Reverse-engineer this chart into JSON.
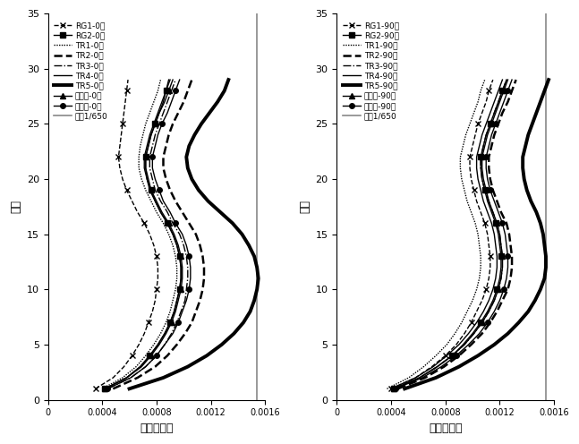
{
  "floors": [
    1,
    2,
    3,
    4,
    5,
    6,
    7,
    8,
    9,
    10,
    11,
    12,
    13,
    14,
    15,
    16,
    17,
    18,
    19,
    20,
    21,
    22,
    23,
    24,
    25,
    26,
    27,
    28,
    29
  ],
  "xlim": [
    0,
    0.0016
  ],
  "ylim": [
    0,
    35
  ],
  "xticks": [
    0,
    0.0004,
    0.0008,
    0.0012,
    0.0016
  ],
  "xtick_labels": [
    "0",
    "0.0004",
    "0.0008",
    "0.0012",
    "0.0016"
  ],
  "yticks": [
    0,
    5,
    10,
    15,
    20,
    25,
    30,
    35
  ],
  "xlabel": "层间位移角",
  "ylabel": "楼层",
  "limit_value": 0.001538,
  "left": {
    "RG1": [
      0.00035,
      0.00048,
      0.00056,
      0.00062,
      0.00067,
      0.00071,
      0.00074,
      0.00077,
      0.00079,
      0.0008,
      0.00081,
      0.00081,
      0.0008,
      0.00078,
      0.00075,
      0.00071,
      0.00066,
      0.00062,
      0.00058,
      0.00055,
      0.00053,
      0.00052,
      0.00053,
      0.00054,
      0.00055,
      0.00056,
      0.00057,
      0.00058,
      0.00059
    ],
    "RG2": [
      0.00042,
      0.00058,
      0.00068,
      0.00075,
      0.00081,
      0.00086,
      0.0009,
      0.00093,
      0.00095,
      0.00097,
      0.00098,
      0.00098,
      0.00097,
      0.00095,
      0.00092,
      0.00088,
      0.00083,
      0.00079,
      0.00076,
      0.00073,
      0.00072,
      0.00072,
      0.00074,
      0.00076,
      0.00079,
      0.00082,
      0.00085,
      0.00087,
      0.00089
    ],
    "TR1": [
      0.0004,
      0.00055,
      0.00065,
      0.00072,
      0.00078,
      0.00083,
      0.00087,
      0.0009,
      0.00092,
      0.00094,
      0.00095,
      0.00095,
      0.00094,
      0.00092,
      0.00089,
      0.00085,
      0.0008,
      0.00076,
      0.00072,
      0.00069,
      0.00067,
      0.00067,
      0.00068,
      0.0007,
      0.00072,
      0.00075,
      0.00078,
      0.00081,
      0.00083
    ],
    "TR2": [
      0.00048,
      0.00066,
      0.00079,
      0.00088,
      0.00095,
      0.00101,
      0.00106,
      0.00109,
      0.00112,
      0.00114,
      0.00115,
      0.00115,
      0.00114,
      0.00112,
      0.00109,
      0.00104,
      0.00099,
      0.00094,
      0.0009,
      0.00087,
      0.00085,
      0.00085,
      0.00087,
      0.00089,
      0.00092,
      0.00096,
      0.001,
      0.00103,
      0.00106
    ],
    "TR3": [
      0.00044,
      0.00061,
      0.00072,
      0.0008,
      0.00086,
      0.00091,
      0.00095,
      0.00098,
      0.00101,
      0.00102,
      0.00103,
      0.00103,
      0.00102,
      0.001,
      0.00097,
      0.00092,
      0.00088,
      0.00083,
      0.00079,
      0.00077,
      0.00075,
      0.00075,
      0.00077,
      0.00079,
      0.00082,
      0.00085,
      0.00088,
      0.00091,
      0.00094
    ],
    "TR4": [
      0.00042,
      0.00058,
      0.00068,
      0.00075,
      0.00081,
      0.00086,
      0.0009,
      0.00093,
      0.00095,
      0.00097,
      0.00098,
      0.00098,
      0.00097,
      0.00095,
      0.00092,
      0.00088,
      0.00083,
      0.00079,
      0.00075,
      0.00073,
      0.00071,
      0.00071,
      0.00073,
      0.00075,
      0.00078,
      0.00081,
      0.00084,
      0.00087,
      0.0009
    ],
    "TR5": [
      0.0006,
      0.00085,
      0.00103,
      0.00117,
      0.00128,
      0.00137,
      0.00144,
      0.00149,
      0.00152,
      0.00154,
      0.00155,
      0.00154,
      0.00152,
      0.00148,
      0.00143,
      0.00136,
      0.00127,
      0.00118,
      0.00111,
      0.00106,
      0.00103,
      0.00102,
      0.00104,
      0.00108,
      0.00113,
      0.00119,
      0.00125,
      0.0013,
      0.00133
    ],
    "fanying": [
      0.00042,
      0.00058,
      0.00069,
      0.00076,
      0.00082,
      0.00087,
      0.00091,
      0.00094,
      0.00096,
      0.00098,
      0.00099,
      0.00099,
      0.00098,
      0.00096,
      0.00093,
      0.00089,
      0.00084,
      0.0008,
      0.00076,
      0.00074,
      0.00072,
      0.00072,
      0.00074,
      0.00076,
      0.00079,
      0.00082,
      0.00086,
      0.00089,
      0.00092
    ],
    "pingjun": [
      0.00044,
      0.00061,
      0.00072,
      0.0008,
      0.00086,
      0.00092,
      0.00096,
      0.00099,
      0.00102,
      0.00104,
      0.00105,
      0.00105,
      0.00104,
      0.00102,
      0.00099,
      0.00094,
      0.0009,
      0.00085,
      0.00082,
      0.00079,
      0.00077,
      0.00077,
      0.00079,
      0.00081,
      0.00084,
      0.00088,
      0.00091,
      0.00094,
      0.00097
    ]
  },
  "right": {
    "RG1": [
      0.0004,
      0.00058,
      0.0007,
      0.0008,
      0.00088,
      0.00094,
      0.00099,
      0.00103,
      0.00107,
      0.0011,
      0.00112,
      0.00113,
      0.00113,
      0.00112,
      0.00111,
      0.00109,
      0.00106,
      0.00103,
      0.00101,
      0.00099,
      0.00098,
      0.00098,
      0.001,
      0.00102,
      0.00104,
      0.00107,
      0.0011,
      0.00112,
      0.00115
    ],
    "RG2": [
      0.00042,
      0.00061,
      0.00074,
      0.00085,
      0.00093,
      0.001,
      0.00106,
      0.00111,
      0.00115,
      0.00118,
      0.0012,
      0.00121,
      0.00121,
      0.0012,
      0.00119,
      0.00117,
      0.00114,
      0.00111,
      0.00109,
      0.00107,
      0.00106,
      0.00106,
      0.00108,
      0.0011,
      0.00113,
      0.00116,
      0.00119,
      0.00122,
      0.00125
    ],
    "TR1": [
      0.00037,
      0.00053,
      0.00064,
      0.00073,
      0.00081,
      0.00087,
      0.00092,
      0.00096,
      0.001,
      0.00103,
      0.00105,
      0.00106,
      0.00106,
      0.00105,
      0.00104,
      0.00102,
      0.00099,
      0.00096,
      0.00094,
      0.00092,
      0.00091,
      0.00091,
      0.00093,
      0.00095,
      0.00098,
      0.00101,
      0.00104,
      0.00106,
      0.00109
    ],
    "TR2": [
      0.00045,
      0.00065,
      0.00079,
      0.0009,
      0.00099,
      0.00107,
      0.00113,
      0.00118,
      0.00122,
      0.00126,
      0.00128,
      0.00129,
      0.00129,
      0.00128,
      0.00127,
      0.00125,
      0.00121,
      0.00118,
      0.00115,
      0.00113,
      0.00112,
      0.00112,
      0.00114,
      0.00116,
      0.00119,
      0.00122,
      0.00126,
      0.00129,
      0.00132
    ],
    "TR3": [
      0.00042,
      0.00061,
      0.00074,
      0.00085,
      0.00094,
      0.00101,
      0.00107,
      0.00112,
      0.00116,
      0.00119,
      0.00121,
      0.00122,
      0.00122,
      0.00121,
      0.0012,
      0.00118,
      0.00115,
      0.00112,
      0.00109,
      0.00107,
      0.00106,
      0.00106,
      0.00108,
      0.0011,
      0.00113,
      0.00116,
      0.00119,
      0.00122,
      0.00125
    ],
    "TR4": [
      0.0004,
      0.00058,
      0.00071,
      0.00081,
      0.0009,
      0.00097,
      0.00103,
      0.00108,
      0.00112,
      0.00115,
      0.00117,
      0.00118,
      0.00118,
      0.00117,
      0.00116,
      0.00114,
      0.00111,
      0.00108,
      0.00106,
      0.00104,
      0.00103,
      0.00103,
      0.00105,
      0.00107,
      0.0011,
      0.00113,
      0.00116,
      0.00119,
      0.00122
    ],
    "TR5": [
      0.0005,
      0.00073,
      0.0009,
      0.00104,
      0.00116,
      0.00126,
      0.00134,
      0.00141,
      0.00146,
      0.0015,
      0.00153,
      0.00154,
      0.00154,
      0.00153,
      0.00152,
      0.0015,
      0.00147,
      0.00143,
      0.0014,
      0.00138,
      0.00137,
      0.00137,
      0.00139,
      0.00141,
      0.00144,
      0.00147,
      0.0015,
      0.00153,
      0.00156
    ],
    "fanying": [
      0.00042,
      0.00061,
      0.00074,
      0.00085,
      0.00094,
      0.00101,
      0.00107,
      0.00112,
      0.00116,
      0.00119,
      0.00121,
      0.00122,
      0.00122,
      0.00121,
      0.0012,
      0.00118,
      0.00115,
      0.00112,
      0.0011,
      0.00108,
      0.00107,
      0.00107,
      0.00109,
      0.00111,
      0.00114,
      0.00117,
      0.0012,
      0.00123,
      0.00126
    ],
    "pingjun": [
      0.00043,
      0.00063,
      0.00077,
      0.00088,
      0.00097,
      0.00105,
      0.00111,
      0.00116,
      0.0012,
      0.00123,
      0.00125,
      0.00126,
      0.00126,
      0.00125,
      0.00124,
      0.00122,
      0.00119,
      0.00116,
      0.00113,
      0.00111,
      0.0011,
      0.0011,
      0.00112,
      0.00114,
      0.00117,
      0.0012,
      0.00123,
      0.00126,
      0.00129
    ]
  },
  "legend_left": [
    "RG1-0度",
    "RG2-0度",
    "TR1-0度",
    "TR2-0度",
    "TR3-0度",
    "TR4-0度",
    "TR5-0度",
    "反应谱-0度",
    "平均值-0度",
    "限倃1/650"
  ],
  "legend_right": [
    "RG1-90度",
    "RG2-90度",
    "TR1-90度",
    "TR2-90度",
    "TR3-90度",
    "TR4-90度",
    "TR5-90度",
    "反应谱-90度",
    "平均值-90度",
    "限倃1/650"
  ]
}
